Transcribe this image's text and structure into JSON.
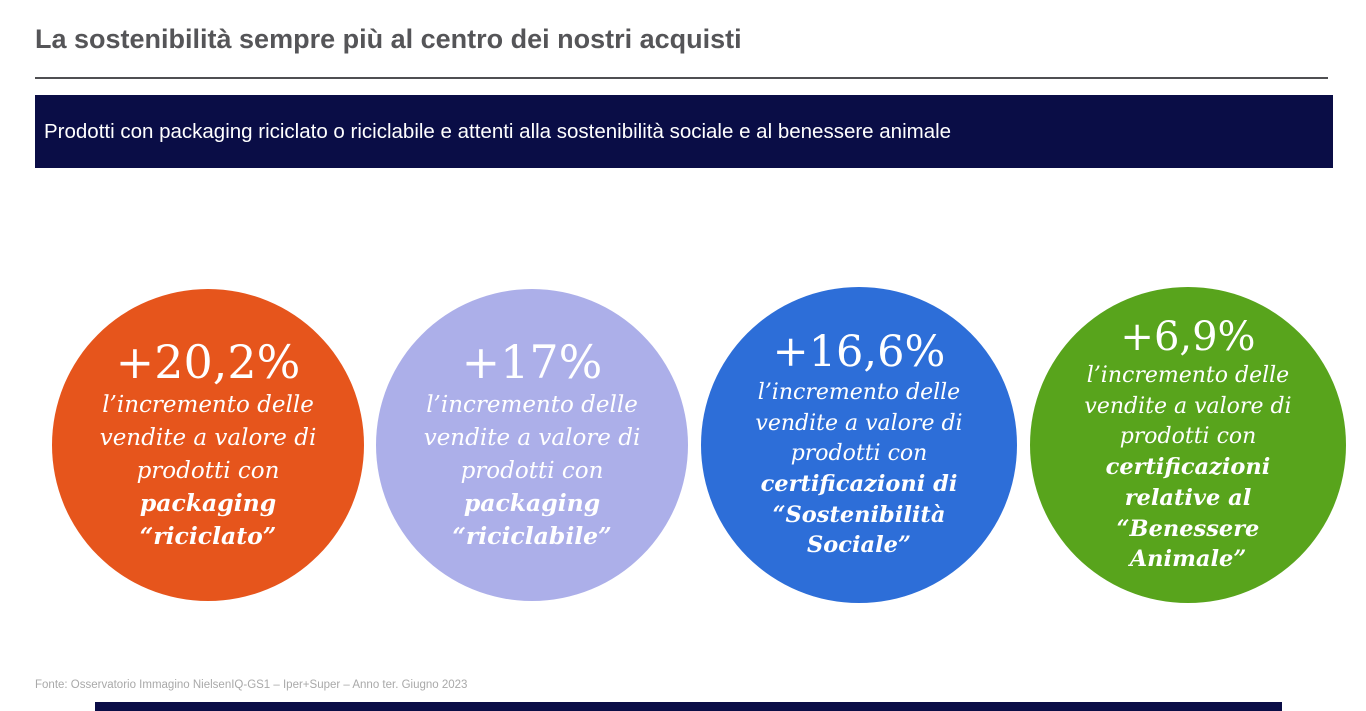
{
  "page": {
    "title": "La sostenibilità sempre più al centro dei nostri acquisti",
    "banner_text": "Prodotti con packaging riciclato o riciclabile e attenti alla sostenibilità sociale e al benessere animale",
    "footer_source": "Fonte: Osservatorio Immagino NielsenIQ-GS1  – Iper+Super – Anno  ter. Giugno 2023"
  },
  "colors": {
    "banner_bg": "#0A0D46",
    "bottom_bar": "#0A0D46",
    "title_text": "#555558",
    "footer_text": "#A9A9A9",
    "circle_text": "#FFFFFF"
  },
  "circles": [
    {
      "value": "+20,2%",
      "body": "l’incremento delle vendite a valore di prodotti con",
      "highlight": "packaging “riciclato”",
      "color": "#E6551C"
    },
    {
      "value": "+17%",
      "body": "l’incremento delle vendite a valore di prodotti con",
      "highlight": "packaging “riciclabile”",
      "color": "#ACAFE9"
    },
    {
      "value": "+16,6%",
      "body": "l’incremento delle vendite a valore di prodotti con",
      "highlight": "certificazioni di “Sostenibilità Sociale”",
      "color": "#2D6ED8"
    },
    {
      "value": "+6,9%",
      "body": "l’incremento delle vendite a valore di prodotti con",
      "highlight": "certificazioni relative al “Benessere Animale”",
      "color": "#58A41C"
    }
  ],
  "chart_data": {
    "type": "table",
    "title": "Prodotti con packaging riciclato o riciclabile e attenti alla sostenibilità sociale e al benessere animale",
    "categories": [
      "packaging “riciclato”",
      "packaging “riciclabile”",
      "certificazioni di “Sostenibilità Sociale”",
      "certificazioni relative al “Benessere Animale”"
    ],
    "values": [
      20.2,
      17.0,
      16.6,
      6.9
    ],
    "unit": "% incremento delle vendite a valore",
    "colors": [
      "#E6551C",
      "#ACAFE9",
      "#2D6ED8",
      "#58A41C"
    ],
    "source": "Osservatorio Immagino NielsenIQ-GS1 – Iper+Super – Anno ter. Giugno 2023"
  }
}
